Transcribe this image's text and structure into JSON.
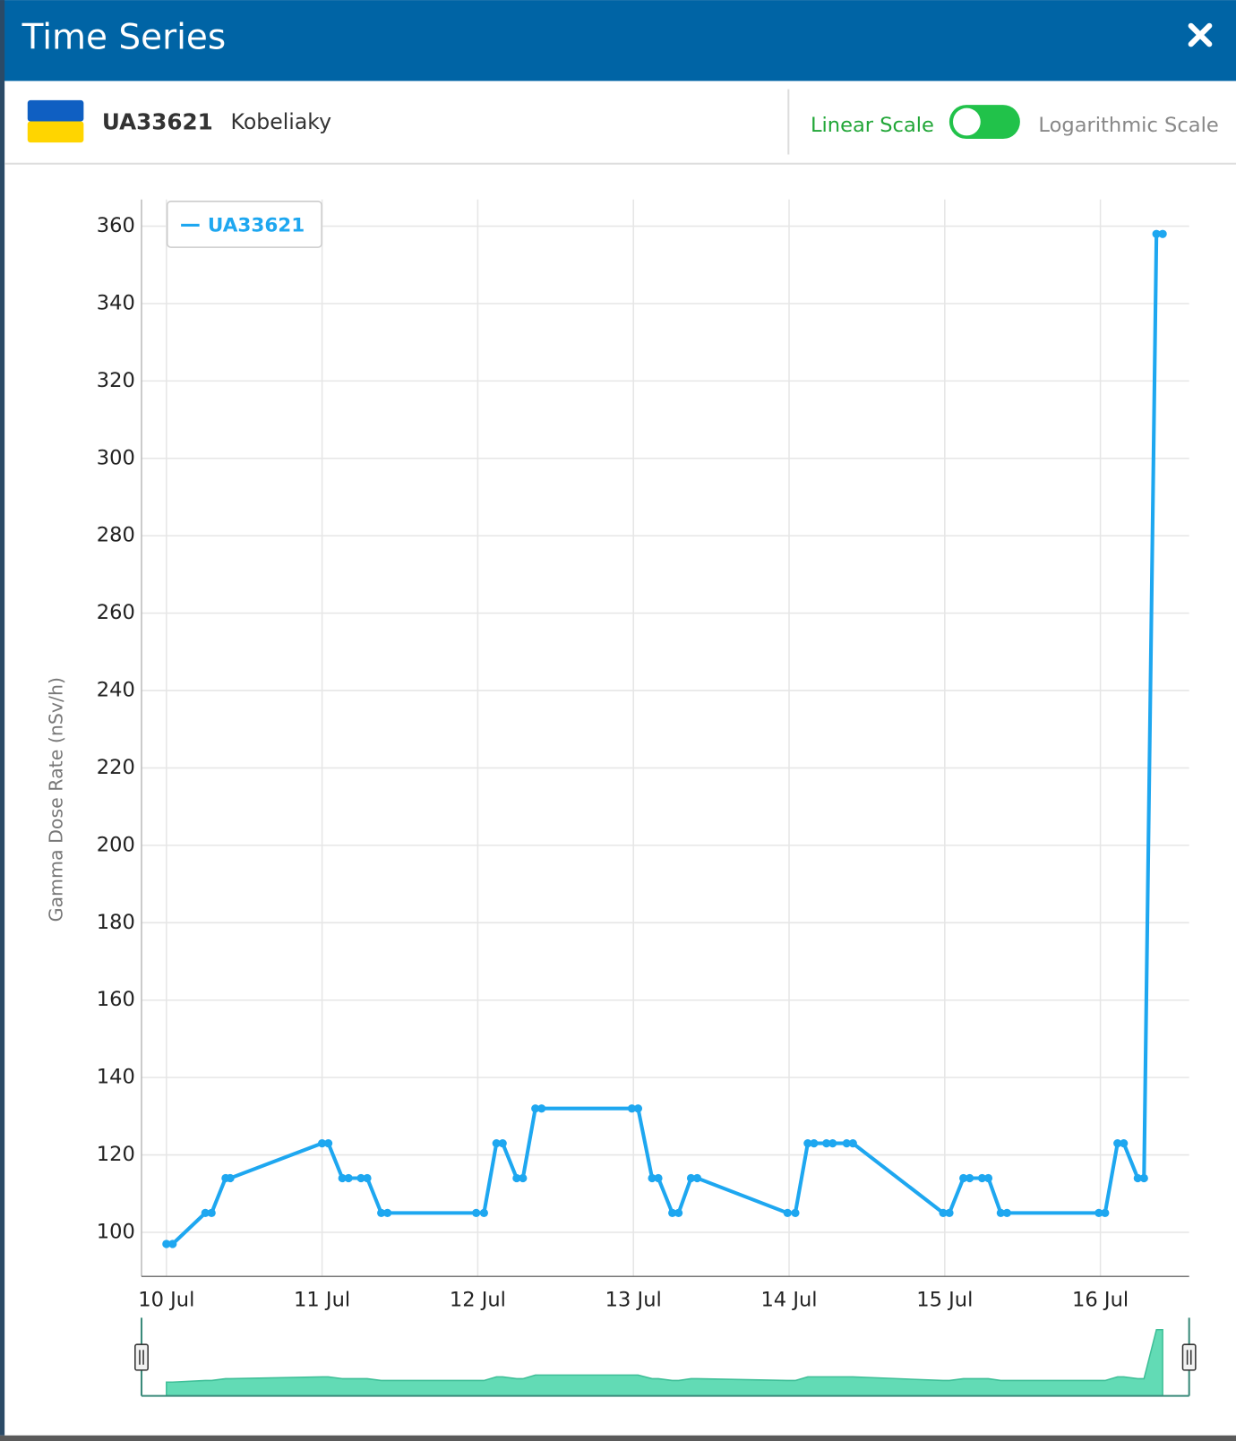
{
  "header": {
    "title": "Time Series"
  },
  "station": {
    "id": "UA33621",
    "name": "Kobeliaky"
  },
  "scale_toggle": {
    "linear": "Linear Scale",
    "log": "Logarithmic Scale"
  },
  "chart_data": {
    "type": "line",
    "y_label": "Gamma Dose Rate (nSv/h)",
    "x": [
      10.0,
      10.04,
      10.25,
      10.29,
      10.38,
      10.41,
      11.0,
      11.04,
      11.13,
      11.17,
      11.25,
      11.29,
      11.38,
      11.42,
      11.99,
      12.04,
      12.12,
      12.16,
      12.25,
      12.29,
      12.37,
      12.41,
      12.99,
      13.03,
      13.12,
      13.16,
      13.25,
      13.29,
      13.37,
      13.41,
      13.99,
      14.04,
      14.12,
      14.16,
      14.24,
      14.28,
      14.37,
      14.41,
      14.99,
      15.03,
      15.12,
      15.16,
      15.24,
      15.28,
      15.36,
      15.4,
      15.99,
      16.03,
      16.11,
      16.15,
      16.24,
      16.28,
      16.36,
      16.4
    ],
    "series": [
      {
        "name": "UA33621",
        "color": "#1ea7f0",
        "values": [
          97,
          97,
          105,
          105,
          114,
          114,
          123,
          123,
          114,
          114,
          114,
          114,
          105,
          105,
          105,
          105,
          123,
          123,
          114,
          114,
          132,
          132,
          132,
          132,
          114,
          114,
          105,
          105,
          114,
          114,
          105,
          105,
          123,
          123,
          123,
          123,
          123,
          123,
          105,
          105,
          114,
          114,
          114,
          114,
          105,
          105,
          105,
          105,
          123,
          123,
          114,
          114,
          358,
          358
        ]
      }
    ],
    "xlim": [
      9.84,
      16.57
    ],
    "ylim": [
      88.6,
      366.9
    ],
    "xticks": [
      {
        "value": 10,
        "label": "10 Jul"
      },
      {
        "value": 11,
        "label": "11 Jul"
      },
      {
        "value": 12,
        "label": "12 Jul"
      },
      {
        "value": 13,
        "label": "13 Jul"
      },
      {
        "value": 14,
        "label": "14 Jul"
      },
      {
        "value": 15,
        "label": "15 Jul"
      },
      {
        "value": 16,
        "label": "16 Jul"
      }
    ],
    "yticks": [
      100,
      120,
      140,
      160,
      180,
      200,
      220,
      240,
      260,
      280,
      300,
      320,
      340,
      360
    ],
    "grid": true,
    "legend": "upper left"
  }
}
